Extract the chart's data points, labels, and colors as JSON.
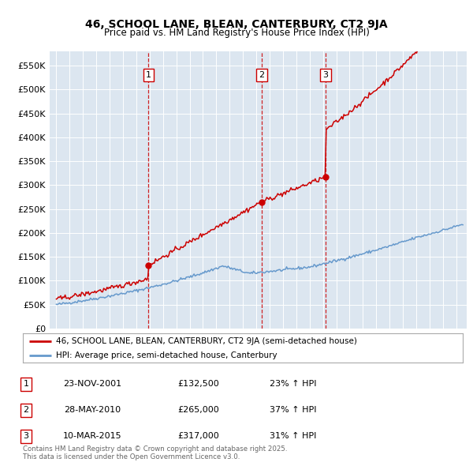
{
  "title": "46, SCHOOL LANE, BLEAN, CANTERBURY, CT2 9JA",
  "subtitle": "Price paid vs. HM Land Registry's House Price Index (HPI)",
  "legend_line1": "46, SCHOOL LANE, BLEAN, CANTERBURY, CT2 9JA (semi-detached house)",
  "legend_line2": "HPI: Average price, semi-detached house, Canterbury",
  "footnote": "Contains HM Land Registry data © Crown copyright and database right 2025.\nThis data is licensed under the Open Government Licence v3.0.",
  "sale_color": "#cc0000",
  "hpi_color": "#6699cc",
  "background_color": "#dce6f0",
  "sale_events": [
    {
      "label": "1",
      "date_str": "23-NOV-2001",
      "date_x": 2001.9,
      "price": 132500,
      "pct": "23% ↑ HPI"
    },
    {
      "label": "2",
      "date_str": "28-MAY-2010",
      "date_x": 2010.4,
      "price": 265000,
      "pct": "37% ↑ HPI"
    },
    {
      "label": "3",
      "date_str": "10-MAR-2015",
      "date_x": 2015.2,
      "price": 317000,
      "pct": "31% ↑ HPI"
    }
  ],
  "ylim": [
    0,
    580000
  ],
  "yticks": [
    0,
    50000,
    100000,
    150000,
    200000,
    250000,
    300000,
    350000,
    400000,
    450000,
    500000,
    550000
  ],
  "ytick_labels": [
    "£0",
    "£50K",
    "£100K",
    "£150K",
    "£200K",
    "£250K",
    "£300K",
    "£350K",
    "£400K",
    "£450K",
    "£500K",
    "£550K"
  ],
  "xlim": [
    1994.5,
    2025.8
  ],
  "xticks": [
    1995,
    1996,
    1997,
    1998,
    1999,
    2000,
    2001,
    2002,
    2003,
    2004,
    2005,
    2006,
    2007,
    2008,
    2009,
    2010,
    2011,
    2012,
    2013,
    2014,
    2015,
    2016,
    2017,
    2018,
    2019,
    2020,
    2021,
    2022,
    2023,
    2024,
    2025
  ]
}
